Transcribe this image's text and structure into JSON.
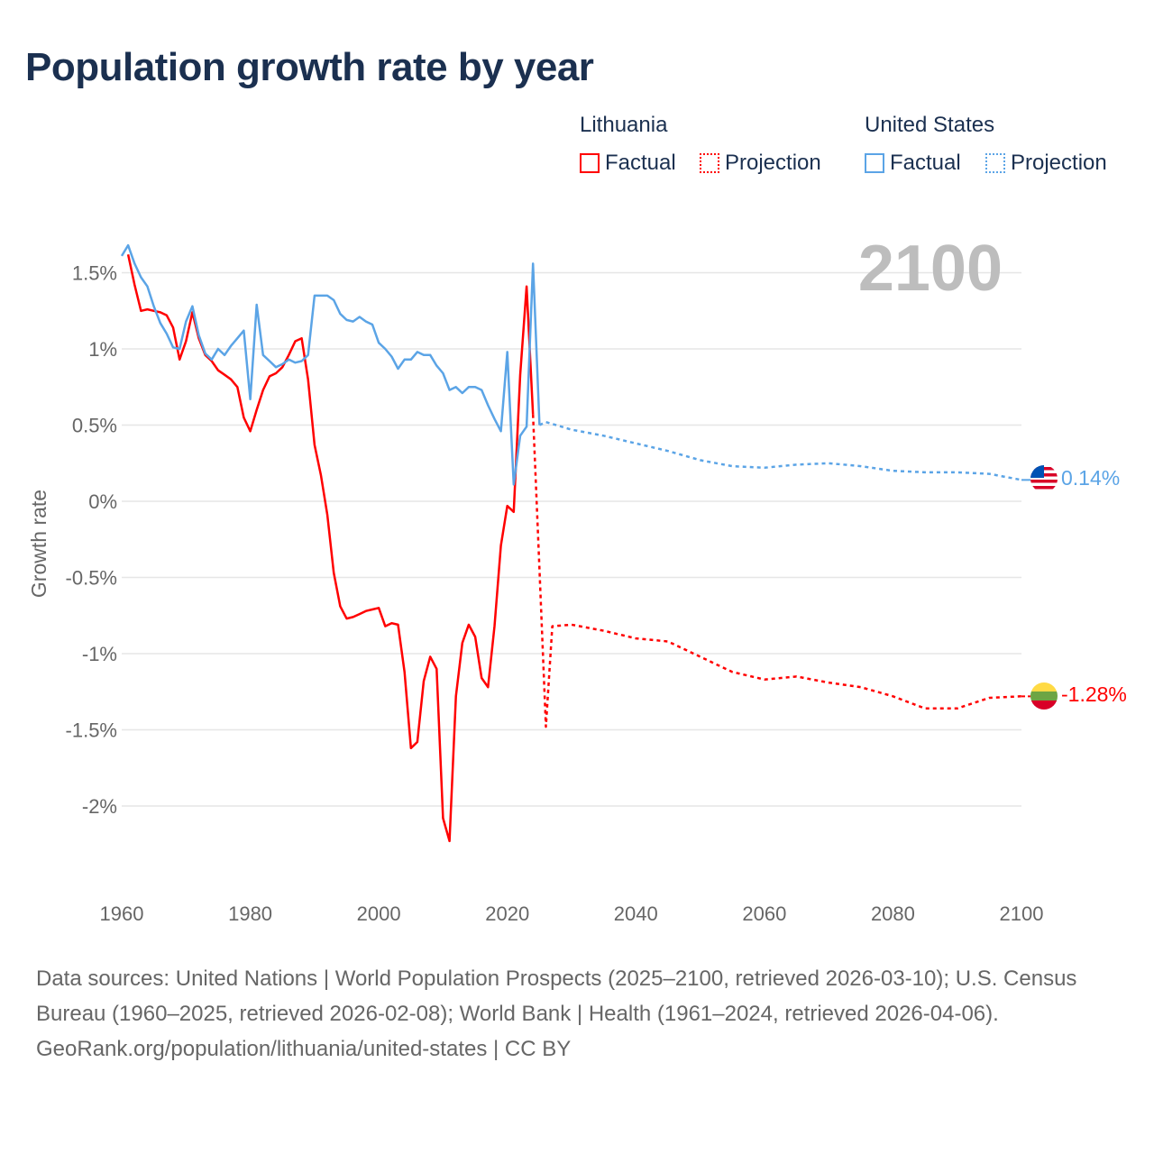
{
  "title": "Population growth rate by year",
  "legend": {
    "groups": [
      {
        "name": "Lithuania",
        "factual": "Factual",
        "projection": "Projection",
        "color": "#ff0000"
      },
      {
        "name": "United States",
        "factual": "Factual",
        "projection": "Projection",
        "color": "#5ba4e6"
      }
    ]
  },
  "year_label": "2100",
  "end_labels": {
    "us": "0.14%",
    "lt": "-1.28%"
  },
  "footer": {
    "sources": "Data sources: United Nations | World Population Prospects (2025–2100, retrieved 2026-03-10); U.S. Census Bureau (1960–2025, retrieved 2026-02-08); World Bank | Health (1961–2024, retrieved 2026-04-06).",
    "credit": "GeoRank.org/population/lithuania/united-states | CC BY"
  },
  "chart_data": {
    "type": "line",
    "title": "Population growth rate by year",
    "xlabel": "",
    "ylabel": "Growth rate",
    "xlim": [
      1960,
      2100
    ],
    "ylim": [
      -2.5,
      1.75
    ],
    "xticks": [
      1960,
      1980,
      2000,
      2020,
      2040,
      2060,
      2080,
      2100
    ],
    "yticks": [
      {
        "v": 1.5,
        "l": "1.5%"
      },
      {
        "v": 1,
        "l": "1%"
      },
      {
        "v": 0.5,
        "l": "0.5%"
      },
      {
        "v": 0,
        "l": "0%"
      },
      {
        "v": -0.5,
        "l": "-0.5%"
      },
      {
        "v": -1,
        "l": "-1%"
      },
      {
        "v": -1.5,
        "l": "-1.5%"
      },
      {
        "v": -2,
        "l": "-2%"
      }
    ],
    "series": [
      {
        "name": "Lithuania Factual",
        "color": "#ff0000",
        "dashed": false,
        "x": [
          1961,
          1962,
          1963,
          1964,
          1965,
          1966,
          1967,
          1968,
          1969,
          1970,
          1971,
          1972,
          1973,
          1974,
          1975,
          1976,
          1977,
          1978,
          1979,
          1980,
          1981,
          1982,
          1983,
          1984,
          1985,
          1986,
          1987,
          1988,
          1989,
          1990,
          1991,
          1992,
          1993,
          1994,
          1995,
          1996,
          1997,
          1998,
          1999,
          2000,
          2001,
          2002,
          2003,
          2004,
          2005,
          2006,
          2007,
          2008,
          2009,
          2010,
          2011,
          2012,
          2013,
          2014,
          2015,
          2016,
          2017,
          2018,
          2019,
          2020,
          2021,
          2022,
          2023,
          2024
        ],
        "y": [
          1.62,
          1.42,
          1.25,
          1.26,
          1.25,
          1.24,
          1.22,
          1.14,
          0.93,
          1.05,
          1.24,
          1.07,
          0.96,
          0.92,
          0.86,
          0.83,
          0.8,
          0.75,
          0.55,
          0.46,
          0.6,
          0.73,
          0.82,
          0.84,
          0.88,
          0.96,
          1.05,
          1.07,
          0.8,
          0.37,
          0.17,
          -0.09,
          -0.47,
          -0.69,
          -0.77,
          -0.76,
          -0.74,
          -0.72,
          -0.71,
          -0.7,
          -0.82,
          -0.8,
          -0.81,
          -1.12,
          -1.62,
          -1.58,
          -1.18,
          -1.02,
          -1.1,
          -2.08,
          -2.23,
          -1.28,
          -0.93,
          -0.81,
          -0.89,
          -1.16,
          -1.22,
          -0.82,
          -0.29,
          -0.03,
          -0.07,
          0.83,
          1.41,
          0.57
        ]
      },
      {
        "name": "Lithuania Projection",
        "color": "#ff0000",
        "dashed": true,
        "x": [
          2024,
          2025,
          2026,
          2027,
          2030,
          2035,
          2040,
          2045,
          2050,
          2055,
          2060,
          2065,
          2070,
          2075,
          2080,
          2085,
          2090,
          2095,
          2100
        ],
        "y": [
          0.57,
          -0.45,
          -1.48,
          -0.82,
          -0.81,
          -0.85,
          -0.9,
          -0.92,
          -1.02,
          -1.12,
          -1.17,
          -1.15,
          -1.19,
          -1.22,
          -1.28,
          -1.36,
          -1.36,
          -1.29,
          -1.28
        ]
      },
      {
        "name": "United States Factual",
        "color": "#5ba4e6",
        "dashed": false,
        "x": [
          1960,
          1961,
          1962,
          1963,
          1964,
          1965,
          1966,
          1967,
          1968,
          1969,
          1970,
          1971,
          1972,
          1973,
          1974,
          1975,
          1976,
          1977,
          1978,
          1979,
          1980,
          1981,
          1982,
          1983,
          1984,
          1985,
          1986,
          1987,
          1988,
          1989,
          1990,
          1991,
          1992,
          1993,
          1994,
          1995,
          1996,
          1997,
          1998,
          1999,
          2000,
          2001,
          2002,
          2003,
          2004,
          2005,
          2006,
          2007,
          2008,
          2009,
          2010,
          2011,
          2012,
          2013,
          2014,
          2015,
          2016,
          2017,
          2018,
          2019,
          2020,
          2021,
          2022,
          2023,
          2024,
          2025
        ],
        "y": [
          1.61,
          1.68,
          1.56,
          1.47,
          1.41,
          1.28,
          1.17,
          1.1,
          1.01,
          1.0,
          1.18,
          1.28,
          1.09,
          0.97,
          0.93,
          1.0,
          0.96,
          1.02,
          1.07,
          1.12,
          0.67,
          1.29,
          0.96,
          0.92,
          0.88,
          0.9,
          0.93,
          0.91,
          0.92,
          0.96,
          1.35,
          1.35,
          1.35,
          1.32,
          1.23,
          1.19,
          1.18,
          1.21,
          1.18,
          1.16,
          1.04,
          1.0,
          0.95,
          0.87,
          0.93,
          0.93,
          0.98,
          0.96,
          0.96,
          0.89,
          0.84,
          0.73,
          0.75,
          0.71,
          0.75,
          0.75,
          0.73,
          0.63,
          0.54,
          0.46,
          0.98,
          0.11,
          0.43,
          0.49,
          1.56,
          0.5
        ]
      },
      {
        "name": "United States Projection",
        "color": "#5ba4e6",
        "dashed": true,
        "x": [
          2025,
          2026,
          2030,
          2035,
          2040,
          2045,
          2050,
          2055,
          2060,
          2065,
          2070,
          2075,
          2080,
          2085,
          2090,
          2095,
          2100
        ],
        "y": [
          0.5,
          0.52,
          0.47,
          0.43,
          0.38,
          0.33,
          0.27,
          0.23,
          0.22,
          0.24,
          0.25,
          0.23,
          0.2,
          0.19,
          0.19,
          0.18,
          0.14
        ]
      }
    ]
  }
}
